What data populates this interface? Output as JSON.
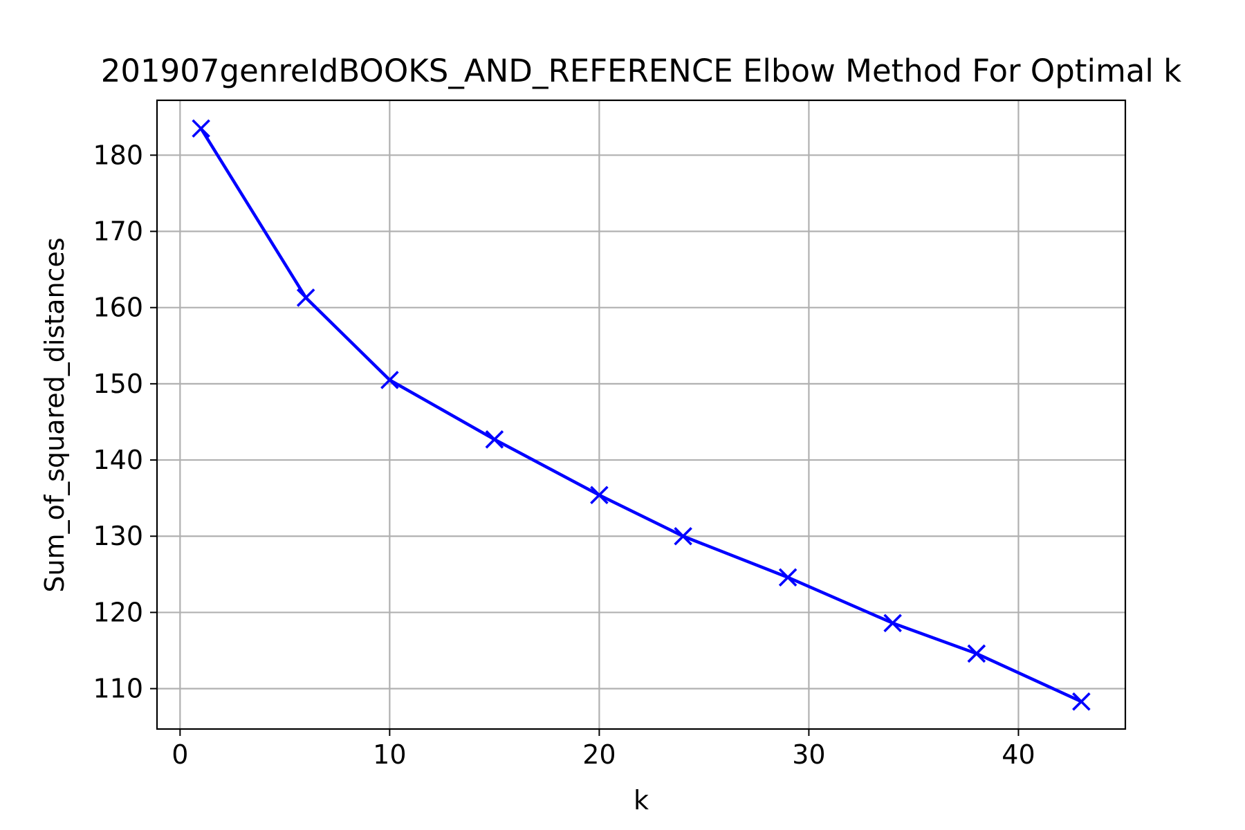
{
  "chart_data": {
    "type": "line",
    "title": "201907genreIdBOOKS_AND_REFERENCE Elbow Method For Optimal k",
    "xlabel": "k",
    "ylabel": "Sum_of_squared_distances",
    "xlim": [
      -1.1,
      45.1
    ],
    "ylim": [
      104.7,
      187.2
    ],
    "xticks": [
      0,
      10,
      20,
      30,
      40
    ],
    "yticks": [
      110,
      120,
      130,
      140,
      150,
      160,
      170,
      180
    ],
    "grid": true,
    "marker": "x",
    "series": [
      {
        "color": "#0000ff",
        "x": [
          1,
          6,
          10,
          15,
          20,
          24,
          29,
          34,
          38,
          43
        ],
        "y": [
          183.5,
          161.3,
          150.5,
          142.7,
          135.4,
          130.0,
          124.6,
          118.6,
          114.6,
          108.3
        ]
      }
    ]
  }
}
